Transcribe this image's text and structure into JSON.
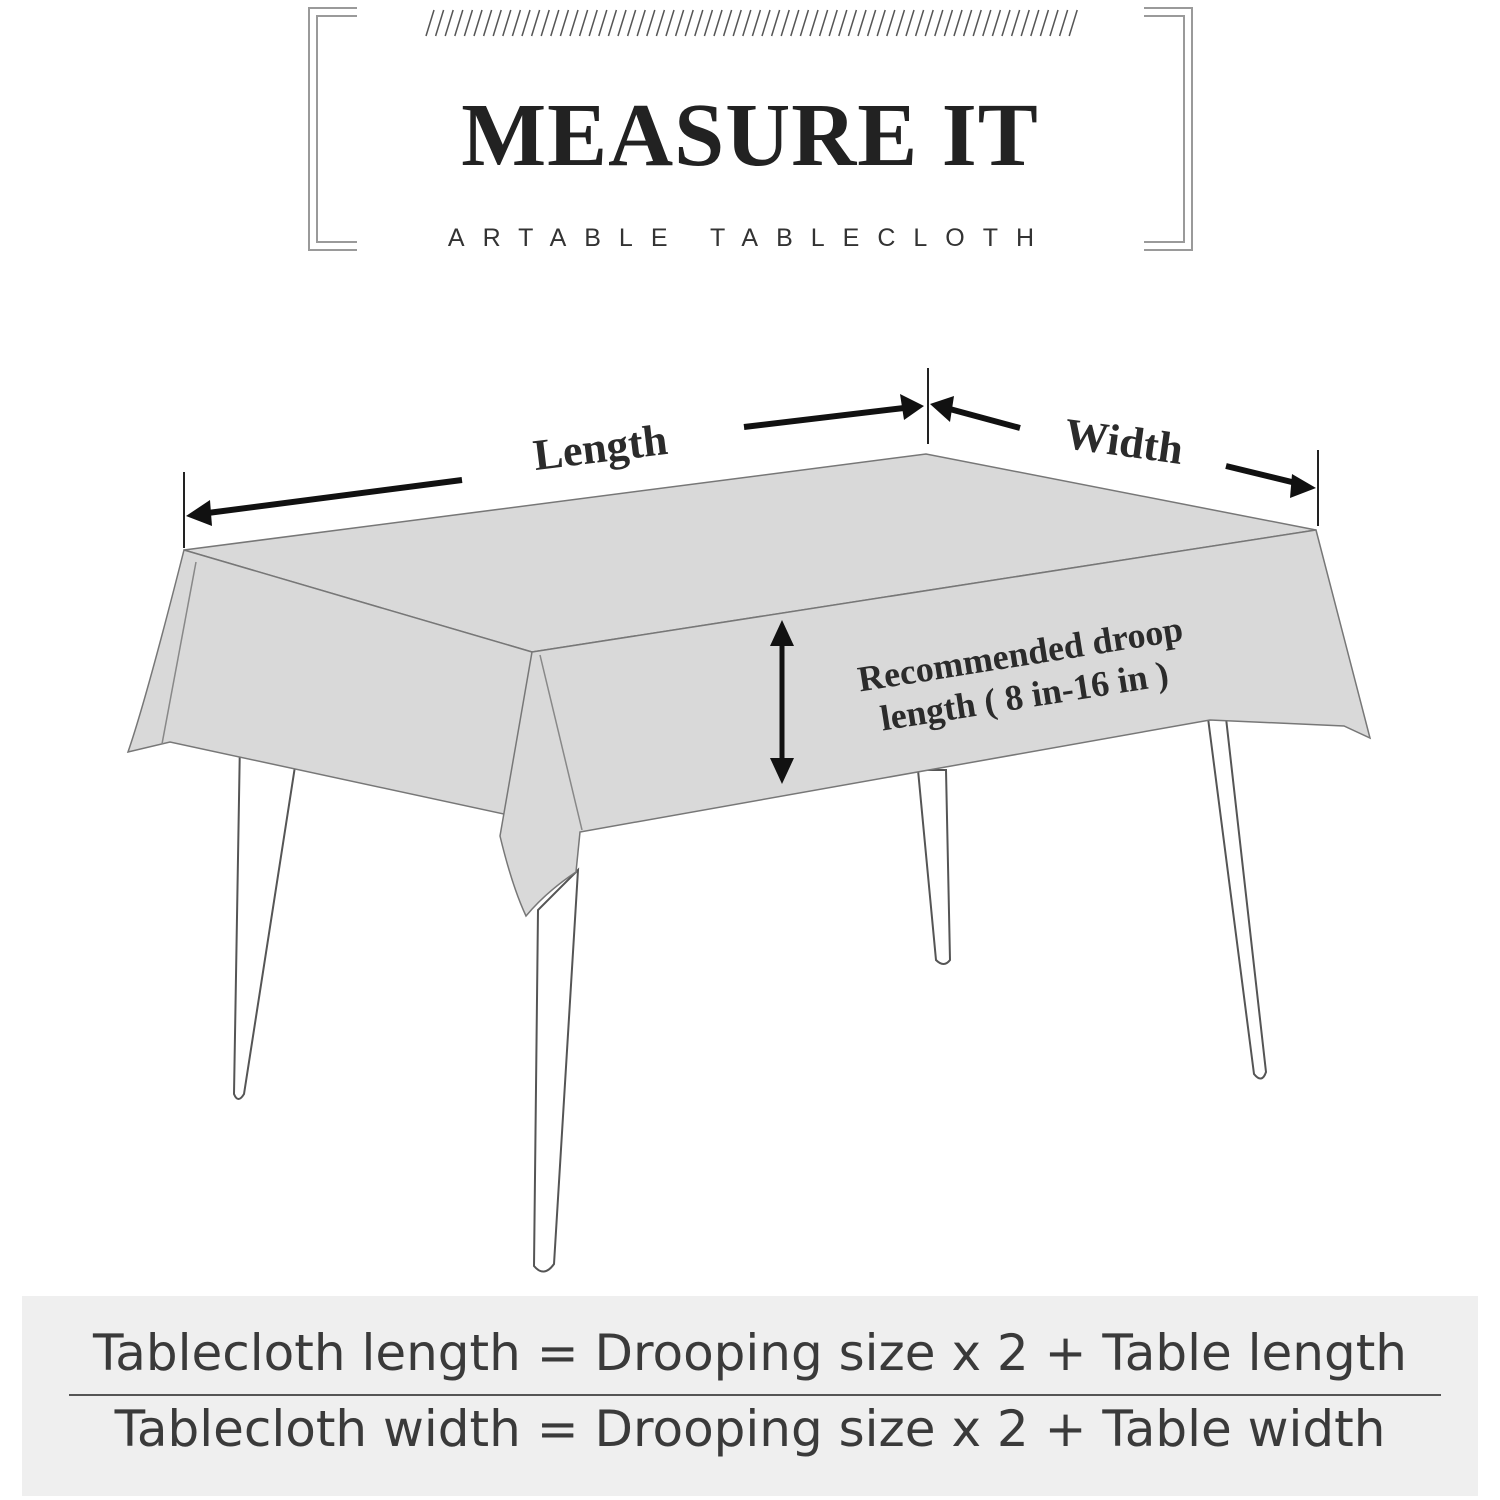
{
  "header": {
    "title": "MEASURE IT",
    "subtitle": "ARTABLE TABLECLOTH"
  },
  "diagram": {
    "length_label": "Length",
    "width_label": "Width",
    "droop_label_line1": "Recommended droop",
    "droop_label_line2": "length ( 8 in-16 in )"
  },
  "formulas": {
    "length_formula": "Tablecloth length = Drooping size x 2 + Table length",
    "width_formula": "Tablecloth width = Drooping size x 2 + Table width"
  },
  "colors": {
    "tablecloth": "#d9d9d9",
    "formula_background": "#efefef",
    "text_dark": "#2b2b2b",
    "frame_line": "#9a9a9a"
  }
}
